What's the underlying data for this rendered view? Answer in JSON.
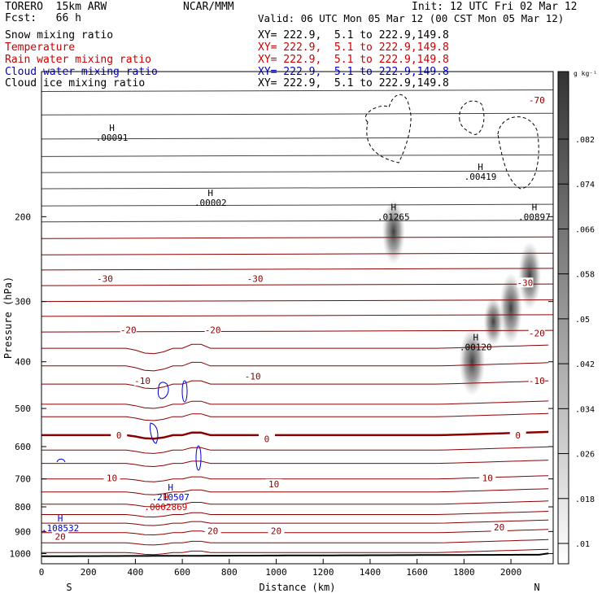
{
  "header": {
    "model": "TORERO  15km ARW",
    "org": "NCAR/MMM",
    "init": "Init: 12 UTC Fri 02 Mar 12",
    "fcst": "Fcst:   66 h",
    "valid": "Valid: 06 UTC Mon 05 Mar 12 (00 CST Mon 05 Mar 12)"
  },
  "fields": [
    {
      "name": "Snow mixing ratio",
      "xy": "XY= 222.9,  5.1 to 222.9,149.8",
      "color": "#000000"
    },
    {
      "name": "Temperature",
      "xy": "XY= 222.9,  5.1 to 222.9,149.8",
      "color": "#cc0000"
    },
    {
      "name": "Rain water mixing ratio",
      "xy": "XY= 222.9,  5.1 to 222.9,149.8",
      "color": "#cc0000"
    },
    {
      "name": "Cloud water mixing ratio",
      "xy": "XY= 222.9,  5.1 to 222.9,149.8",
      "color": "#0000cc"
    },
    {
      "name": "Cloud ice mixing ratio",
      "xy": "XY= 222.9,  5.1 to 222.9,149.8",
      "color": "#000000"
    }
  ],
  "colors": {
    "temperature": "#8b0000",
    "cloud_water": "#0000cc",
    "rain": "#cc0000",
    "cloud_ice": "#000000",
    "ground": "#000000"
  },
  "chart_data": {
    "type": "cross-section",
    "xlabel": "Distance (km)",
    "ylabel": "Pressure (hPa)",
    "x_ticks": [
      0,
      200,
      400,
      600,
      800,
      1000,
      1200,
      1400,
      1600,
      1800,
      2000
    ],
    "y_ticks": [
      200,
      300,
      400,
      500,
      600,
      700,
      800,
      900,
      1000
    ],
    "xlim": [
      0,
      2180
    ],
    "ylim": [
      100,
      1050
    ],
    "y_log": true,
    "endpoint_left": "S",
    "endpoint_right": "N",
    "colorbar": {
      "unit": "g kg⁻¹",
      "ticks": [
        ".082",
        ".074",
        ".066",
        ".058",
        ".05",
        ".042",
        ".034",
        ".026",
        ".018",
        ".01"
      ]
    },
    "temperature_labels": [
      {
        "label": "-70",
        "x": 2110,
        "p": 115
      },
      {
        "label": "-30",
        "x": 270,
        "p": 270
      },
      {
        "label": "-30",
        "x": 910,
        "p": 270
      },
      {
        "label": "-30",
        "x": 2060,
        "p": 275
      },
      {
        "label": "-20",
        "x": 370,
        "p": 345
      },
      {
        "label": "-20",
        "x": 730,
        "p": 345
      },
      {
        "label": "-20",
        "x": 2110,
        "p": 350
      },
      {
        "label": "-10",
        "x": 430,
        "p": 440
      },
      {
        "label": "-10",
        "x": 900,
        "p": 430
      },
      {
        "label": "-10",
        "x": 2110,
        "p": 440
      },
      {
        "label": "0",
        "x": 330,
        "p": 570
      },
      {
        "label": "0",
        "x": 960,
        "p": 580
      },
      {
        "label": "0",
        "x": 2030,
        "p": 570
      },
      {
        "label": "10",
        "x": 300,
        "p": 700
      },
      {
        "label": "10",
        "x": 990,
        "p": 720
      },
      {
        "label": "10",
        "x": 1900,
        "p": 700
      },
      {
        "label": "20",
        "x": 730,
        "p": 900
      },
      {
        "label": "20",
        "x": 1000,
        "p": 900
      },
      {
        "label": "20",
        "x": 80,
        "p": 925
      },
      {
        "label": "20",
        "x": 1950,
        "p": 885
      }
    ],
    "maxima": [
      {
        "label": ".00091",
        "x": 300,
        "p": 137,
        "color": "#000000"
      },
      {
        "label": ".00002",
        "x": 720,
        "p": 187,
        "color": "#000000"
      },
      {
        "label": ".01265",
        "x": 1500,
        "p": 200,
        "color": "#000000"
      },
      {
        "label": ".00419",
        "x": 1870,
        "p": 165,
        "color": "#000000"
      },
      {
        "label": ".00897",
        "x": 2100,
        "p": 200,
        "color": "#000000"
      },
      {
        "label": ".00120",
        "x": 1850,
        "p": 373,
        "color": "#000000"
      },
      {
        "label": ".210507",
        "x": 550,
        "p": 763,
        "color": "#0000cc"
      },
      {
        "label": ".0002869",
        "x": 530,
        "p": 800,
        "color": "#cc0000"
      },
      {
        "label": ".108532",
        "x": 80,
        "p": 885,
        "color": "#0000cc"
      }
    ]
  }
}
